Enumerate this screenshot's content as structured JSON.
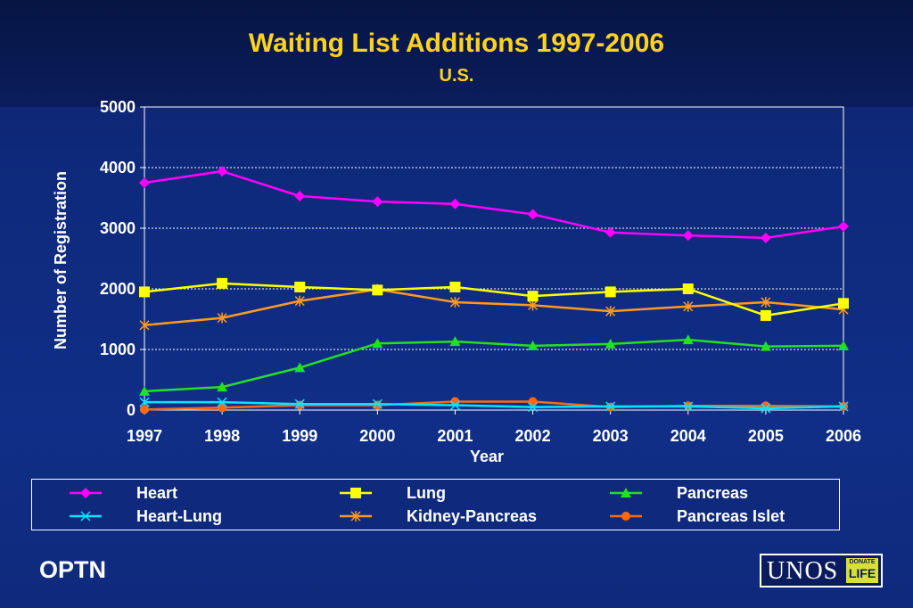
{
  "title": "Waiting List Additions 1997-2006",
  "subtitle": "U.S.",
  "footer": {
    "left_text": "OPTN",
    "logo_text": "UNOS",
    "logo_badge_top": "DONATE",
    "logo_badge_bottom": "LIFE"
  },
  "chart_data": {
    "type": "line",
    "xlabel": "Year",
    "ylabel": "Number of Registration",
    "ylim": [
      0,
      5000
    ],
    "yticks": [
      0,
      1000,
      2000,
      3000,
      4000,
      5000
    ],
    "grid": "horizontal dotted",
    "legend_placement": "bottom",
    "categories": [
      "1997",
      "1998",
      "1999",
      "2000",
      "2001",
      "2002",
      "2003",
      "2004",
      "2005",
      "2006"
    ],
    "series": [
      {
        "name": "Heart",
        "color": "#ff00ff",
        "marker": "diamond",
        "values": [
          3750,
          3940,
          3530,
          3440,
          3400,
          3230,
          2930,
          2880,
          2840,
          3030
        ]
      },
      {
        "name": "Lung",
        "color": "#ffff00",
        "marker": "square",
        "values": [
          1950,
          2090,
          2030,
          1980,
          2030,
          1880,
          1950,
          2000,
          1560,
          1760
        ]
      },
      {
        "name": "Pancreas",
        "color": "#22e022",
        "marker": "triangle",
        "values": [
          310,
          380,
          700,
          1100,
          1130,
          1060,
          1090,
          1160,
          1050,
          1060
        ]
      },
      {
        "name": "Heart-Lung",
        "color": "#00e5ff",
        "marker": "x",
        "values": [
          130,
          130,
          100,
          100,
          80,
          50,
          60,
          60,
          30,
          60
        ]
      },
      {
        "name": "Kidney-Pancreas",
        "color": "#ff9a1e",
        "marker": "star",
        "values": [
          1400,
          1520,
          1800,
          1990,
          1780,
          1730,
          1630,
          1710,
          1780,
          1660
        ]
      },
      {
        "name": "Pancreas Islet",
        "color": "#ff6a10",
        "marker": "circle",
        "values": [
          10,
          40,
          80,
          80,
          140,
          140,
          50,
          70,
          70,
          60
        ]
      }
    ]
  }
}
